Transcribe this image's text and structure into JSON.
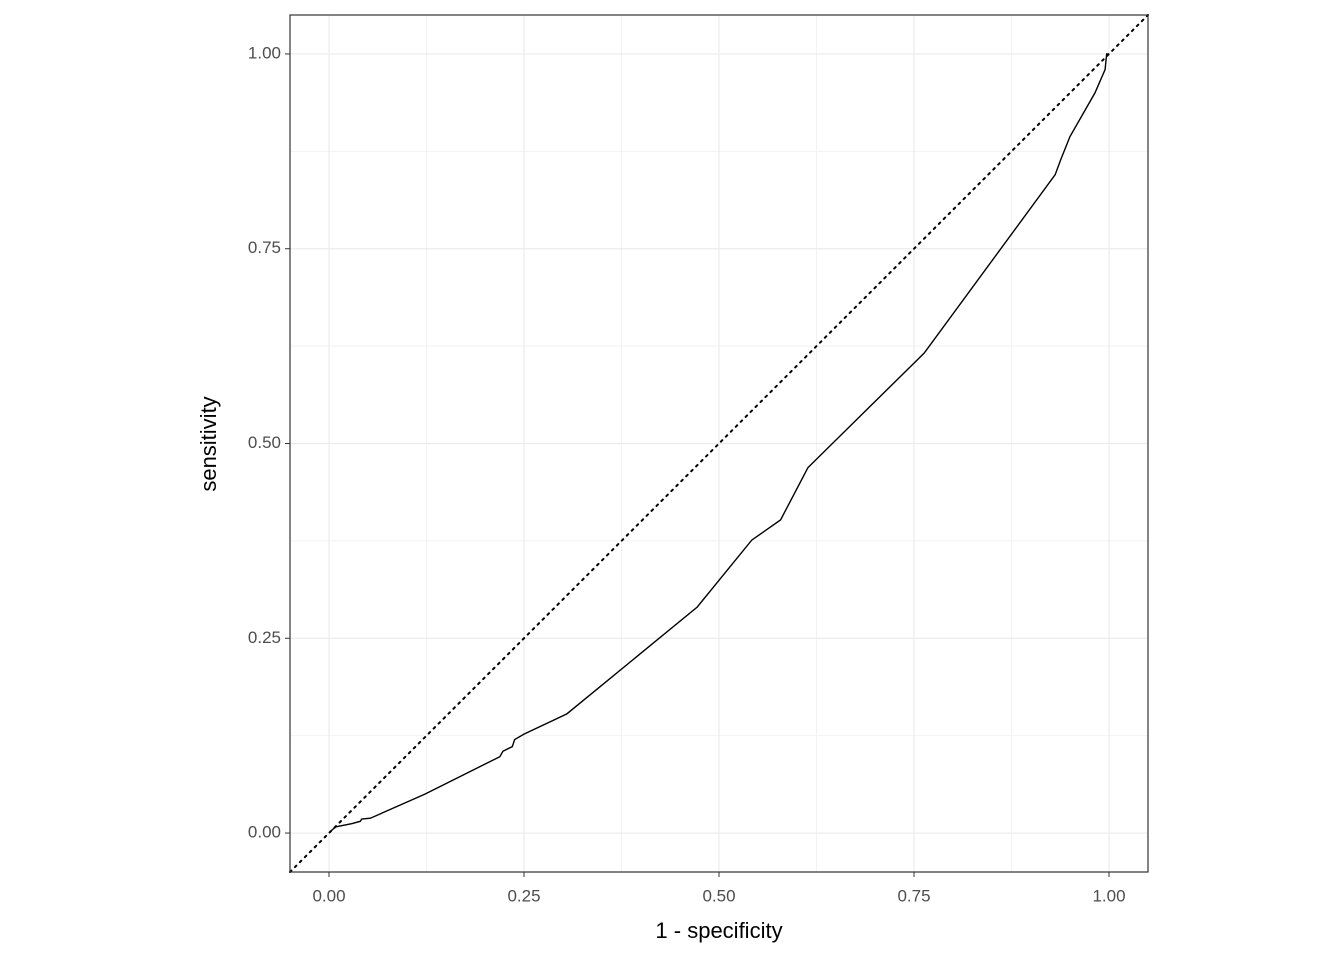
{
  "chart_data": {
    "type": "line",
    "x_label": "1 - specificity",
    "y_label": "sensitivity",
    "x": [
      0,
      0.005,
      0.009,
      0.029,
      0.04,
      0.042,
      0.053,
      0.123,
      0.219,
      0.223,
      0.235,
      0.238,
      0.25,
      0.305,
      0.472,
      0.542,
      0.579,
      0.614,
      0.763,
      0.931,
      0.938,
      0.95,
      0.982,
      0.995,
      0.996,
      0.997,
      1
    ],
    "values": [
      0,
      0.005,
      0.008,
      0.012,
      0.015,
      0.018,
      0.019,
      0.05,
      0.098,
      0.105,
      0.111,
      0.12,
      0.127,
      0.153,
      0.29,
      0.376,
      0.402,
      0.469,
      0.616,
      0.845,
      0.864,
      0.894,
      0.95,
      0.98,
      0.99,
      1,
      1
    ],
    "color": "#000000",
    "xlim": [
      -0.05,
      1.05
    ],
    "ylim": [
      -0.05,
      1.05
    ],
    "xticks": [
      {
        "value": 0,
        "label": "0.00"
      },
      {
        "value": 0.25,
        "label": "0.25"
      },
      {
        "value": 0.5,
        "label": "0.50"
      },
      {
        "value": 0.75,
        "label": "0.75"
      },
      {
        "value": 1,
        "label": "1.00"
      }
    ],
    "yticks": [
      {
        "value": 0,
        "label": "0.00"
      },
      {
        "value": 0.25,
        "label": "0.25"
      },
      {
        "value": 0.5,
        "label": "0.50"
      },
      {
        "value": 0.75,
        "label": "0.75"
      },
      {
        "value": 1,
        "label": "1.00"
      }
    ],
    "grid": true,
    "reference_diagonal": true
  }
}
